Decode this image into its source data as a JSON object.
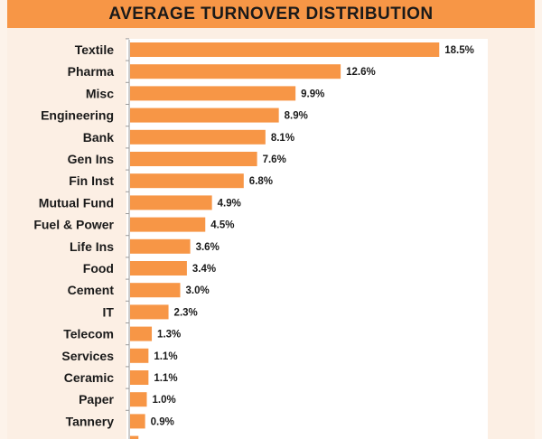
{
  "chart_data": {
    "type": "bar",
    "orientation": "horizontal",
    "title": "AVERAGE TURNOVER DISTRIBUTION",
    "categories": [
      "Textile",
      "Pharma",
      "Misc",
      "Engineering",
      "Bank",
      "Gen Ins",
      "Fin Inst",
      "Mutual Fund",
      "Fuel & Power",
      "Life Ins",
      "Food",
      "Cement",
      "IT",
      "Telecom",
      "Services",
      "Ceramic",
      "Paper",
      "Tannery"
    ],
    "values": [
      18.5,
      12.6,
      9.9,
      8.9,
      8.1,
      7.6,
      6.8,
      4.9,
      4.5,
      3.6,
      3.4,
      3.0,
      2.3,
      1.3,
      1.1,
      1.1,
      1.0,
      0.9
    ],
    "value_labels": [
      "18.5%",
      "12.6%",
      "9.9%",
      "8.9%",
      "8.1%",
      "7.6%",
      "6.8%",
      "4.9%",
      "4.5%",
      "3.6%",
      "3.4%",
      "3.0%",
      "2.3%",
      "1.3%",
      "1.1%",
      "1.1%",
      "1.0%",
      "0.9%"
    ],
    "partially_visible_last_bar_value": 0.5,
    "xlim": [
      0,
      20
    ],
    "grid": false,
    "legend": "none",
    "bar_color": "#f79646",
    "header_color": "#f79646"
  }
}
